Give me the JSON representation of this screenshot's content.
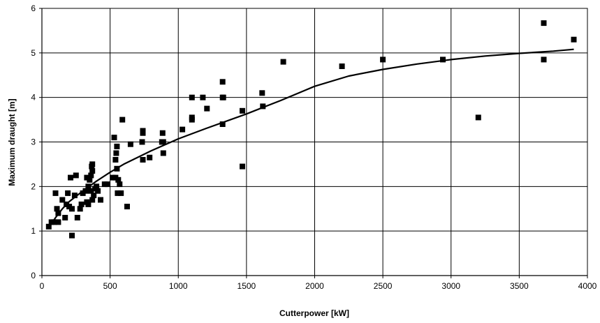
{
  "chart_data": {
    "type": "scatter",
    "title": "",
    "xlabel": "Cutterpower [kW]",
    "ylabel": "Maximum draught [m]",
    "xlim": [
      0,
      4000
    ],
    "ylim": [
      0,
      6
    ],
    "x_ticks": [
      0,
      500,
      1000,
      1500,
      2000,
      2500,
      3000,
      3500,
      4000
    ],
    "y_ticks": [
      0,
      1,
      2,
      3,
      4,
      5,
      6
    ],
    "grid": true,
    "legend": "none",
    "colors": {
      "points": "#000000",
      "trend": "#000000",
      "grid": "#000000"
    },
    "series": [
      {
        "kind": "points",
        "marker": "square",
        "x": [
          50,
          70,
          90,
          100,
          110,
          120,
          120,
          150,
          170,
          180,
          190,
          200,
          210,
          220,
          220,
          240,
          250,
          260,
          280,
          290,
          300,
          320,
          330,
          330,
          340,
          340,
          350,
          360,
          360,
          365,
          370,
          370,
          370,
          380,
          390,
          400,
          410,
          430,
          460,
          480,
          520,
          530,
          540,
          540,
          545,
          550,
          550,
          555,
          560,
          570,
          580,
          590,
          625,
          650,
          735,
          740,
          740,
          740,
          790,
          880,
          885,
          890,
          890,
          1030,
          1100,
          1100,
          1100,
          1180,
          1210,
          1325,
          1325,
          1325,
          1330,
          1470,
          1470,
          1615,
          1620,
          1770,
          2200,
          2500,
          2940,
          3200,
          3680,
          3680,
          3900
        ],
        "y": [
          1.1,
          1.2,
          1.2,
          1.85,
          1.5,
          1.4,
          1.2,
          1.7,
          1.3,
          1.6,
          1.85,
          1.55,
          2.2,
          0.9,
          1.5,
          1.8,
          2.25,
          1.3,
          1.5,
          1.6,
          1.85,
          1.9,
          2.2,
          1.65,
          2.0,
          1.6,
          2.15,
          2.25,
          1.9,
          2.45,
          2.5,
          2.35,
          1.7,
          1.8,
          1.95,
          2.0,
          1.9,
          1.7,
          2.05,
          2.05,
          2.2,
          3.1,
          2.6,
          2.2,
          2.75,
          2.9,
          2.4,
          1.85,
          2.15,
          2.05,
          1.85,
          3.5,
          1.55,
          2.95,
          3.0,
          3.2,
          3.25,
          2.6,
          2.65,
          3.0,
          3.2,
          2.75,
          3.0,
          3.28,
          4.0,
          3.55,
          3.5,
          4.0,
          3.75,
          4.35,
          4.0,
          3.4,
          4.0,
          2.45,
          3.7,
          4.1,
          3.8,
          4.8,
          4.7,
          4.85,
          4.85,
          3.55,
          5.67,
          4.85,
          5.3
        ]
      },
      {
        "kind": "trend",
        "x": [
          60,
          100,
          150,
          200,
          300,
          400,
          500,
          600,
          800,
          1000,
          1200,
          1500,
          1750,
          2000,
          2250,
          2500,
          2750,
          3000,
          3250,
          3500,
          3750,
          3900
        ],
        "y": [
          1.12,
          1.3,
          1.5,
          1.66,
          1.9,
          2.12,
          2.32,
          2.5,
          2.8,
          3.07,
          3.3,
          3.63,
          3.93,
          4.25,
          4.48,
          4.63,
          4.75,
          4.85,
          4.93,
          4.99,
          5.04,
          5.08
        ]
      }
    ]
  }
}
